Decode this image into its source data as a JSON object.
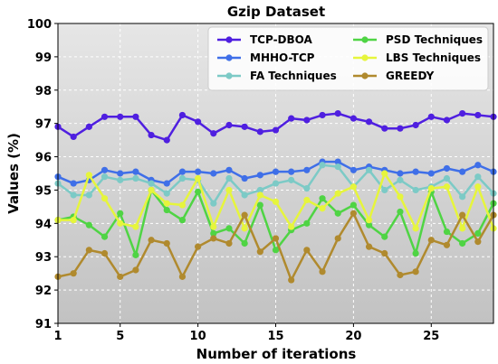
{
  "chart_data": {
    "type": "line",
    "title": "Gzip Dataset",
    "xlabel": "Number of iterations",
    "ylabel": "Values (%)",
    "xlim": [
      1,
      29
    ],
    "ylim": [
      91,
      100
    ],
    "xticks": [
      1,
      5,
      10,
      15,
      20,
      25
    ],
    "yticks": [
      91,
      92,
      93,
      94,
      95,
      96,
      97,
      98,
      99,
      100
    ],
    "grid": true,
    "legend_position": "top-right",
    "x": [
      1,
      2,
      3,
      4,
      5,
      6,
      7,
      8,
      9,
      10,
      11,
      12,
      13,
      14,
      15,
      16,
      17,
      18,
      19,
      20,
      21,
      22,
      23,
      24,
      25,
      26,
      27,
      28,
      29
    ],
    "series": [
      {
        "name": "TCP-DBOA",
        "color": "#4f1fe0",
        "values": [
          96.9,
          96.6,
          96.9,
          97.2,
          97.2,
          97.2,
          96.65,
          96.5,
          97.25,
          97.05,
          96.7,
          96.95,
          96.9,
          96.75,
          96.8,
          97.15,
          97.1,
          97.25,
          97.3,
          97.15,
          97.05,
          96.85,
          96.85,
          96.95,
          97.2,
          97.1,
          97.3,
          97.25,
          97.2
        ]
      },
      {
        "name": "MHHO-TCP",
        "color": "#3f6fe8",
        "values": [
          95.4,
          95.2,
          95.3,
          95.6,
          95.5,
          95.55,
          95.3,
          95.2,
          95.55,
          95.55,
          95.5,
          95.6,
          95.35,
          95.45,
          95.55,
          95.55,
          95.6,
          95.85,
          95.85,
          95.6,
          95.7,
          95.6,
          95.5,
          95.55,
          95.5,
          95.65,
          95.55,
          95.75,
          95.55
        ]
      },
      {
        "name": "FA Techniques",
        "color": "#7ccac6",
        "values": [
          95.2,
          94.85,
          94.85,
          95.4,
          95.3,
          95.35,
          95.2,
          94.9,
          95.35,
          95.3,
          94.6,
          95.35,
          94.85,
          95.0,
          95.2,
          95.3,
          95.05,
          95.75,
          95.7,
          95.1,
          95.6,
          95.0,
          95.3,
          95.0,
          95.1,
          95.35,
          94.8,
          95.4,
          94.9
        ]
      },
      {
        "name": "PSD Techniques",
        "color": "#4fd444",
        "values": [
          94.1,
          94.2,
          93.95,
          93.6,
          94.3,
          93.05,
          95.0,
          94.4,
          94.1,
          94.95,
          93.7,
          93.85,
          93.4,
          94.55,
          93.2,
          93.8,
          94.0,
          94.75,
          94.3,
          94.55,
          93.95,
          93.6,
          94.35,
          93.1,
          94.95,
          93.75,
          93.4,
          93.7,
          94.6
        ]
      },
      {
        "name": "LBS Techniques",
        "color": "#e6f53c",
        "values": [
          94.1,
          94.1,
          95.45,
          94.75,
          94.0,
          93.9,
          95.0,
          94.6,
          94.55,
          95.35,
          93.9,
          95.0,
          93.85,
          94.85,
          94.65,
          93.9,
          94.7,
          94.45,
          94.9,
          95.1,
          94.1,
          95.5,
          94.8,
          93.85,
          95.05,
          95.1,
          93.85,
          95.1,
          93.85
        ]
      },
      {
        "name": "GREEDY",
        "color": "#b08a2e",
        "values": [
          92.4,
          92.5,
          93.2,
          93.1,
          92.4,
          92.6,
          93.5,
          93.4,
          92.4,
          93.3,
          93.55,
          93.4,
          94.25,
          93.15,
          93.55,
          92.3,
          93.2,
          92.55,
          93.55,
          94.3,
          93.3,
          93.1,
          92.45,
          92.55,
          93.5,
          93.35,
          94.25,
          93.45,
          94.25
        ]
      }
    ]
  }
}
